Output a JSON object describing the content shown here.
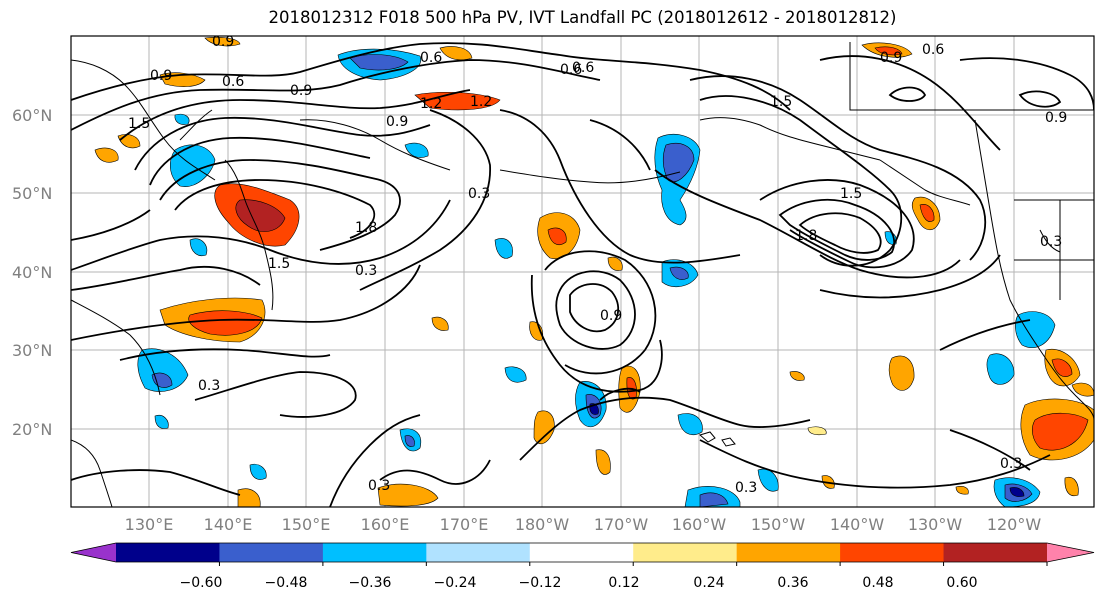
{
  "title": "2018012312 F018 500 hPa PV, IVT Landfall PC (2018012612 - 2018012812)",
  "lat_labels": [
    "60°N",
    "50°N",
    "40°N",
    "30°N",
    "20°N"
  ],
  "lon_labels": [
    "130°E",
    "140°E",
    "150°E",
    "160°E",
    "170°E",
    "180°W",
    "170°W",
    "160°W",
    "150°W",
    "140°W",
    "130°W",
    "120°W"
  ],
  "colorbar": {
    "ticks": [
      "−0.60",
      "−0.48",
      "−0.36",
      "−0.24",
      "−0.12",
      "0.12",
      "0.24",
      "0.36",
      "0.48",
      "0.60"
    ],
    "levels": [
      -0.6,
      -0.48,
      -0.36,
      -0.24,
      -0.12,
      0.12,
      0.24,
      0.36,
      0.48,
      0.6
    ],
    "colors": [
      "#9932cc",
      "#00008b",
      "#3a5fcd",
      "#00bfff",
      "#b0e2ff",
      "#ffffff",
      "#ffec8b",
      "#ffa500",
      "#ff4500",
      "#b22222",
      "#ff82ab"
    ]
  },
  "contour_labels": [
    "0.9",
    "0.6",
    "0.6",
    "0.9",
    "0.6",
    "0.6",
    "1.2",
    "1.2",
    "0.9",
    "0.9",
    "1.5",
    "0.3",
    "0.3",
    "0.3",
    "0.3",
    "0.3",
    "0.3",
    "0.9",
    "1.8",
    "1.5",
    "0.9",
    "0.3",
    "0.6",
    "0.9",
    "1.5",
    "1.8",
    "1.5"
  ]
}
